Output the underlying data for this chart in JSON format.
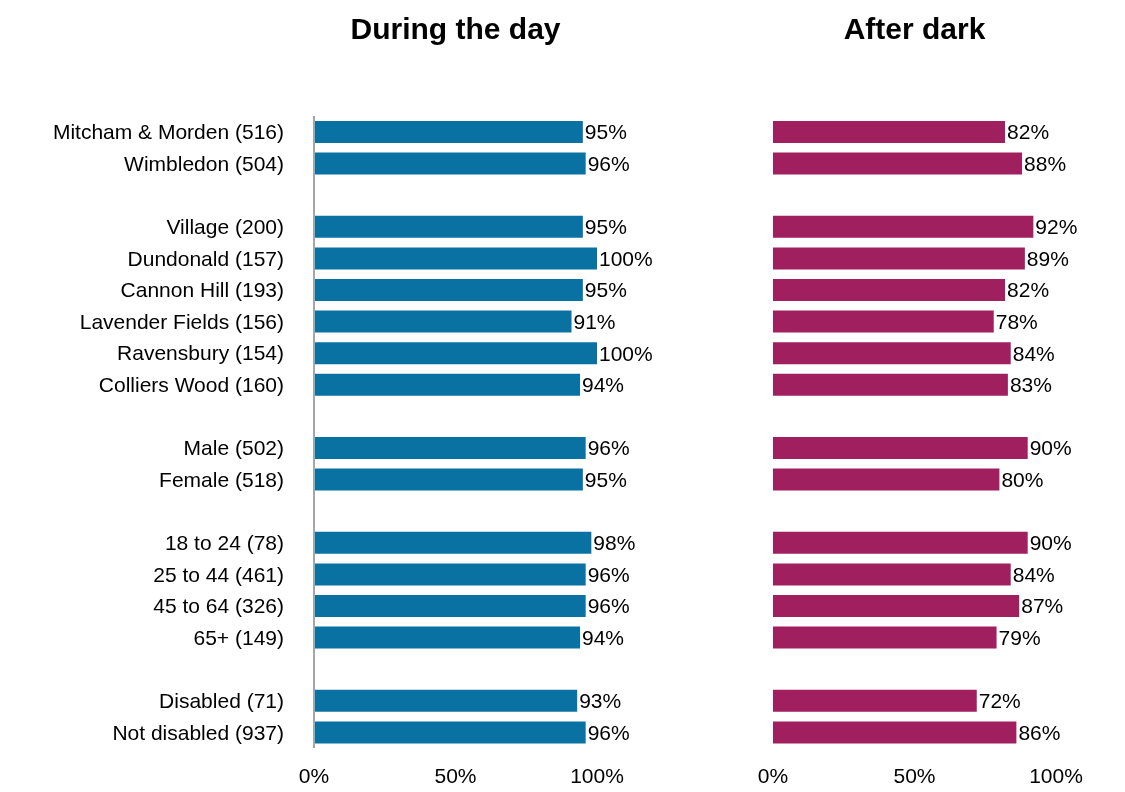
{
  "chart_data": [
    {
      "type": "bar",
      "orientation": "horizontal",
      "title": "During the day",
      "categories": [
        "Mitcham & Morden (516)",
        "Wimbledon (504)",
        null,
        "Village (200)",
        "Dundonald (157)",
        "Cannon Hill (193)",
        "Lavender Fields (156)",
        "Ravensbury (154)",
        "Colliers Wood (160)",
        null,
        "Male (502)",
        "Female (518)",
        null,
        "18 to 24 (78)",
        "25 to 44 (461)",
        "45 to 64 (326)",
        "65+ (149)",
        null,
        "Disabled (71)",
        "Not disabled (937)"
      ],
      "values": [
        95,
        96,
        null,
        95,
        100,
        95,
        91,
        100,
        94,
        null,
        96,
        95,
        null,
        98,
        96,
        96,
        94,
        null,
        93,
        96
      ],
      "value_labels": [
        "95%",
        "96%",
        null,
        "95%",
        "100%",
        "95%",
        "91%",
        "100%",
        "94%",
        null,
        "96%",
        "95%",
        null,
        "98%",
        "96%",
        "96%",
        "94%",
        null,
        "93%",
        "96%"
      ],
      "color": "#0a72a2",
      "xlim": [
        0,
        100
      ],
      "xticks": [
        {
          "value": 0,
          "label": "0%"
        },
        {
          "value": 50,
          "label": "50%"
        },
        {
          "value": 100,
          "label": "100%"
        }
      ],
      "grid": false,
      "legend": false
    },
    {
      "type": "bar",
      "orientation": "horizontal",
      "title": "After dark",
      "categories": [
        null,
        null,
        null,
        null,
        null,
        null,
        null,
        null,
        null,
        null,
        null,
        null,
        null,
        null,
        null,
        null,
        null,
        null,
        null,
        null
      ],
      "values": [
        82,
        88,
        null,
        92,
        89,
        82,
        78,
        84,
        83,
        null,
        90,
        80,
        null,
        90,
        84,
        87,
        79,
        null,
        72,
        86
      ],
      "value_labels": [
        "82%",
        "88%",
        null,
        "92%",
        "89%",
        "82%",
        "78%",
        "84%",
        "83%",
        null,
        "90%",
        "80%",
        null,
        "90%",
        "84%",
        "87%",
        "79%",
        null,
        "72%",
        "86%"
      ],
      "color": "#a01f5f",
      "xlim": [
        0,
        100
      ],
      "xticks": [
        {
          "value": 0,
          "label": "0%"
        },
        {
          "value": 50,
          "label": "50%"
        },
        {
          "value": 100,
          "label": "100%"
        }
      ],
      "grid": false,
      "legend": false,
      "tick_labels": "x"
    }
  ]
}
